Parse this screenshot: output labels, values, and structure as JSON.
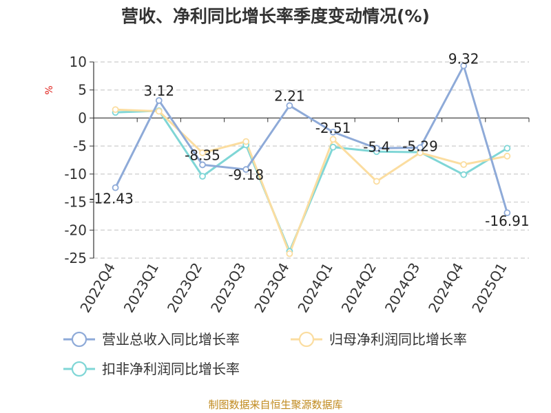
{
  "chart_data": {
    "type": "line",
    "title": "营收、净利同比增长率季度变动情况(%)",
    "ylabel": "%",
    "ylim": [
      -25,
      10
    ],
    "yticks": [
      10,
      5,
      0,
      -5,
      -10,
      -15,
      -20,
      -25
    ],
    "grid": true,
    "legend_position": "bottom",
    "categories": [
      "2022Q4",
      "2023Q1",
      "2023Q2",
      "2023Q3",
      "2023Q4",
      "2024Q1",
      "2024Q2",
      "2024Q3",
      "2024Q4",
      "2025Q1"
    ],
    "series": [
      {
        "name": "营业总收入同比增长率",
        "color": "#8eaad8",
        "values": [
          -12.43,
          3.12,
          -8.35,
          -9.18,
          2.21,
          -2.51,
          -5.4,
          -5.29,
          9.32,
          -16.91
        ],
        "labels": [
          "-12.43",
          "3.12",
          "-8.35",
          "-9.18",
          "2.21",
          "-2.51",
          "-5.4",
          "-5.29",
          "9.32",
          "-16.91"
        ]
      },
      {
        "name": "归母净利润同比增长率",
        "color": "#fbdda0",
        "values": [
          1.5,
          1.2,
          -6.2,
          -4.2,
          -24.2,
          -3.8,
          -11.3,
          -6.2,
          -8.3,
          -6.8
        ]
      },
      {
        "name": "扣非净利润同比增长率",
        "color": "#7fd6d6",
        "values": [
          1.0,
          1.3,
          -10.4,
          -4.8,
          -23.8,
          -5.2,
          -6.0,
          -6.1,
          -10.1,
          -5.4
        ]
      }
    ]
  },
  "footer": "制图数据来自恒生聚源数据库",
  "colors": {
    "axis": "#333333",
    "grid": "#cccccc",
    "unit": "#e0201b",
    "footer": "#c08a1e"
  }
}
